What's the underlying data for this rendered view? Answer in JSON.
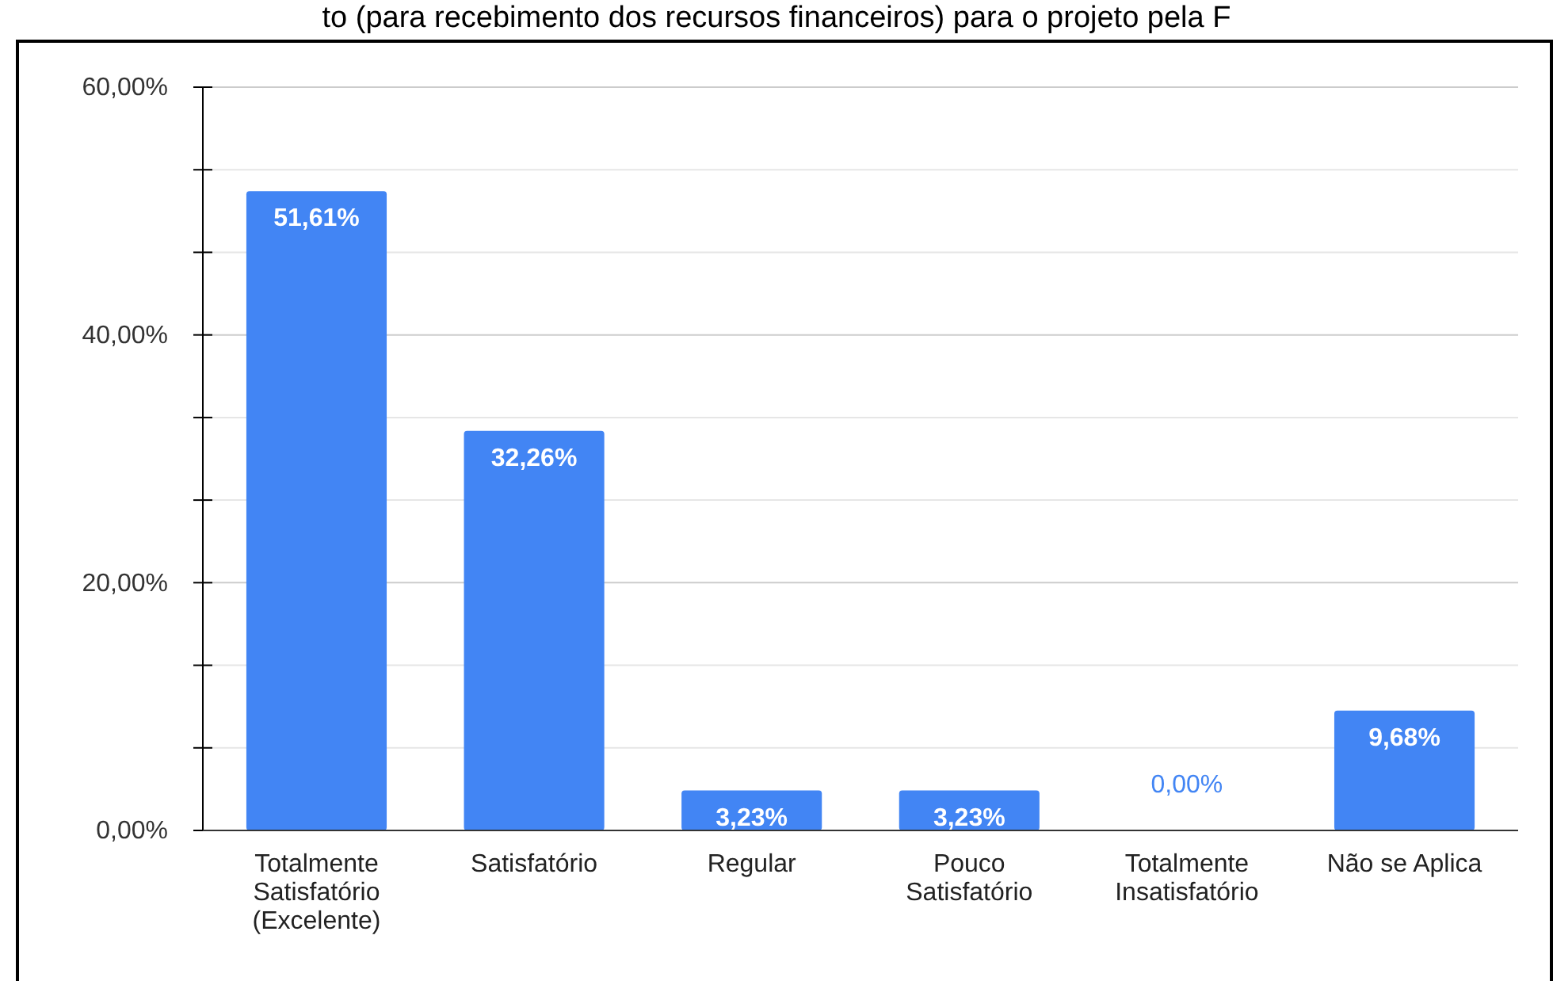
{
  "chart_data": {
    "type": "bar",
    "title": "to (para recebimento dos recursos financeiros) para o projeto pela F",
    "categories": [
      "Totalmente Satisfatório (Excelente)",
      "Satisfatório",
      "Regular",
      "Pouco Satisfatório",
      "Totalmente Insatisfatório",
      "Não se Aplica"
    ],
    "values": [
      51.61,
      32.26,
      3.23,
      3.23,
      0,
      9.68
    ],
    "value_labels": [
      "51,61%",
      "32,26%",
      "3,23%",
      "3,23%",
      "0,00%",
      "9,68%"
    ],
    "color": "#4285f4",
    "ylim": [
      0,
      60
    ],
    "yticks": [
      {
        "value": 0,
        "label": "0,00%"
      },
      {
        "value": 6.667,
        "label": null
      },
      {
        "value": 13.333,
        "label": null
      },
      {
        "value": 20,
        "label": "20,00%"
      },
      {
        "value": 26.667,
        "label": null
      },
      {
        "value": 33.333,
        "label": null
      },
      {
        "value": 40,
        "label": "40,00%"
      },
      {
        "value": 46.667,
        "label": null
      },
      {
        "value": 53.333,
        "label": null
      },
      {
        "value": 60,
        "label": "60,00%"
      }
    ],
    "grid": "y"
  }
}
